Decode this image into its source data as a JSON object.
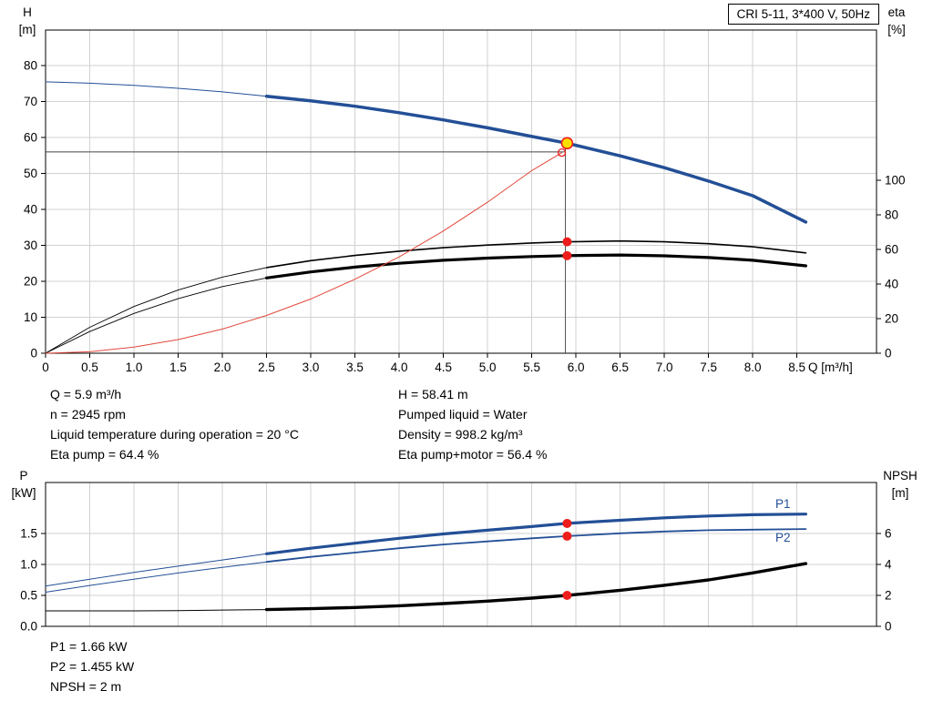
{
  "title_box": "CRI 5-11, 3*400 V, 50Hz",
  "info": {
    "left": [
      "Q = 5.9 m³/h",
      "n = 2945 rpm",
      "Liquid temperature during operation = 20 °C",
      "Eta pump = 64.4 %"
    ],
    "right": [
      "H = 58.41 m",
      "Pumped liquid = Water",
      "Density = 998.2 kg/m³",
      "Eta pump+motor = 56.4 %"
    ],
    "bottom": [
      "P1 = 1.66 kW",
      "P2 = 1.455 kW",
      "NPSH = 2 m"
    ]
  },
  "colors": {
    "curve_blue": "#234f96",
    "curve_black": "#000000",
    "curve_red": "#e0483c",
    "dot_red": "#ee1c1c",
    "duty_yellow": "#ffdf00",
    "grid": "#d2d2d2"
  },
  "chart_data": [
    {
      "type": "line",
      "id": "performance",
      "title": "CRI 5-11, 3*400 V, 50Hz",
      "x_label": "Q [m³/h]",
      "grid": true,
      "grid_color": "#d2d2d2",
      "x_axis": {
        "min": 0,
        "max": 9.4,
        "ticks": [
          0,
          0.5,
          1,
          1.5,
          2,
          2.5,
          3,
          3.5,
          4,
          4.5,
          5,
          5.5,
          6,
          6.5,
          7,
          7.5,
          8,
          8.5
        ],
        "tick_labels": [
          "0",
          "0.5",
          "1.0",
          "1.5",
          "2.0",
          "2.5",
          "3.0",
          "3.5",
          "4.0",
          "4.5",
          "5.0",
          "5.5",
          "6.0",
          "6.5",
          "7.0",
          "7.5",
          "8.0",
          "8.5"
        ]
      },
      "left_axis": {
        "name": "H",
        "unit": "[m]",
        "min": 0,
        "max": 89.9,
        "ticks": [
          0,
          10,
          20,
          30,
          40,
          50,
          60,
          70,
          80
        ],
        "tick_labels": [
          "0",
          "10",
          "20",
          "30",
          "40",
          "50",
          "60",
          "70",
          "80"
        ]
      },
      "right_axis": {
        "name": "eta",
        "unit": "[%]",
        "min": 0,
        "max": 186.8,
        "ticks": [
          0,
          20,
          40,
          60,
          80,
          100
        ],
        "tick_labels": [
          "0",
          "20",
          "40",
          "60",
          "80",
          "100"
        ]
      },
      "series": [
        {
          "id": "head-curve",
          "axis": "left",
          "color": "#234f96",
          "bold_from": 2.5,
          "width_thin": 1,
          "width_bold": 3.5,
          "points": [
            [
              0,
              75.5
            ],
            [
              0.5,
              75.1
            ],
            [
              1,
              74.5
            ],
            [
              1.5,
              73.7
            ],
            [
              2,
              72.7
            ],
            [
              2.5,
              71.5
            ],
            [
              3,
              70.2
            ],
            [
              3.5,
              68.7
            ],
            [
              4,
              66.9
            ],
            [
              4.5,
              64.9
            ],
            [
              5,
              62.7
            ],
            [
              5.5,
              60.3
            ],
            [
              5.9,
              58.41
            ],
            [
              6.5,
              54.9
            ],
            [
              7,
              51.6
            ],
            [
              7.5,
              47.9
            ],
            [
              8,
              43.8
            ],
            [
              8.6,
              36.5
            ]
          ]
        },
        {
          "id": "eta-pump-curve",
          "axis": "right",
          "color": "#000000",
          "bold_from": 2.5,
          "width_thin": 0.9,
          "width_bold": 1.6,
          "points": [
            [
              0,
              0
            ],
            [
              0.5,
              15
            ],
            [
              1,
              27
            ],
            [
              1.5,
              36.5
            ],
            [
              2,
              44
            ],
            [
              2.5,
              49.5
            ],
            [
              3,
              53.5
            ],
            [
              3.5,
              56.5
            ],
            [
              4,
              59
            ],
            [
              4.5,
              61
            ],
            [
              5,
              62.5
            ],
            [
              5.5,
              63.7
            ],
            [
              5.9,
              64.4
            ],
            [
              6.5,
              64.9
            ],
            [
              7,
              64.4
            ],
            [
              7.5,
              63.3
            ],
            [
              8,
              61.5
            ],
            [
              8.6,
              58
            ]
          ]
        },
        {
          "id": "eta-pump-motor-curve",
          "axis": "right",
          "color": "#000000",
          "bold_from": 2.5,
          "width_thin": 0.9,
          "width_bold": 3.2,
          "points": [
            [
              0,
              0
            ],
            [
              0.5,
              12.5
            ],
            [
              1,
              23
            ],
            [
              1.5,
              31.5
            ],
            [
              2,
              38.5
            ],
            [
              2.5,
              43.5
            ],
            [
              3,
              47
            ],
            [
              3.5,
              49.8
            ],
            [
              4,
              52
            ],
            [
              4.5,
              53.7
            ],
            [
              5,
              55
            ],
            [
              5.5,
              55.9
            ],
            [
              5.9,
              56.4
            ],
            [
              6.5,
              56.8
            ],
            [
              7,
              56.3
            ],
            [
              7.5,
              55.3
            ],
            [
              8,
              53.7
            ],
            [
              8.6,
              50.5
            ]
          ]
        },
        {
          "id": "system-curve",
          "axis": "left",
          "color": "#e0483c",
          "width": 1,
          "points": [
            [
              0,
              0
            ],
            [
              0.5,
              0.4
            ],
            [
              1,
              1.7
            ],
            [
              1.5,
              3.8
            ],
            [
              2,
              6.7
            ],
            [
              2.5,
              10.5
            ],
            [
              3,
              15.1
            ],
            [
              3.5,
              20.6
            ],
            [
              4,
              26.8
            ],
            [
              4.5,
              34
            ],
            [
              5,
              42
            ],
            [
              5.5,
              50.8
            ],
            [
              5.84,
              55.8
            ]
          ]
        }
      ],
      "crosshair": {
        "x": 5.88,
        "y_h": 56.0,
        "y_top": 58.41
      },
      "markers": [
        {
          "id": "system-curve-end",
          "type": "open",
          "axis": "left",
          "x": 5.84,
          "y": 55.8,
          "stroke": "#ee1c1c"
        },
        {
          "id": "duty-point",
          "type": "duty",
          "axis": "left",
          "x": 5.9,
          "y": 58.41,
          "fill": "#ffdf00",
          "stroke": "#ee1c1c"
        },
        {
          "id": "eta-pump-point",
          "type": "dot",
          "axis": "right",
          "x": 5.9,
          "y": 64.4,
          "fill": "#ee1c1c"
        },
        {
          "id": "eta-pump-motor-point",
          "type": "dot",
          "axis": "right",
          "x": 5.9,
          "y": 56.4,
          "fill": "#ee1c1c"
        }
      ]
    },
    {
      "type": "line",
      "id": "power-npsh",
      "grid": true,
      "grid_color": "#d2d2d2",
      "x_axis": {
        "min": 0,
        "max": 9.4,
        "ticks": [
          0,
          0.5,
          1,
          1.5,
          2,
          2.5,
          3,
          3.5,
          4,
          4.5,
          5,
          5.5,
          6,
          6.5,
          7,
          7.5,
          8,
          8.5
        ]
      },
      "left_axis": {
        "name": "P",
        "unit": "[kW]",
        "min": 0,
        "max": 2.32,
        "ticks": [
          0,
          0.5,
          1,
          1.5
        ],
        "tick_labels": [
          "0.0",
          "0.5",
          "1.0",
          "1.5"
        ]
      },
      "right_axis": {
        "name": "NPSH",
        "unit": "[m]",
        "min": 0,
        "max": 9.29,
        "ticks": [
          0,
          2,
          4,
          6
        ],
        "tick_labels": [
          "0",
          "2",
          "4",
          "6"
        ]
      },
      "series": [
        {
          "id": "p1-curve",
          "label": "P1",
          "axis": "left",
          "color": "#234f96",
          "bold_from": 2.5,
          "width_thin": 1,
          "width_bold": 3.2,
          "points": [
            [
              0,
              0.65
            ],
            [
              0.5,
              0.76
            ],
            [
              1,
              0.87
            ],
            [
              1.5,
              0.97
            ],
            [
              2,
              1.07
            ],
            [
              2.5,
              1.17
            ],
            [
              3,
              1.26
            ],
            [
              3.5,
              1.34
            ],
            [
              4,
              1.42
            ],
            [
              4.5,
              1.49
            ],
            [
              5,
              1.55
            ],
            [
              5.5,
              1.61
            ],
            [
              5.9,
              1.66
            ],
            [
              6.5,
              1.71
            ],
            [
              7,
              1.75
            ],
            [
              7.5,
              1.78
            ],
            [
              8,
              1.8
            ],
            [
              8.6,
              1.81
            ]
          ]
        },
        {
          "id": "p2-curve",
          "label": "P2",
          "axis": "left",
          "color": "#234f96",
          "bold_from": 2.5,
          "width_thin": 1,
          "width_bold": 1.8,
          "points": [
            [
              0,
              0.55
            ],
            [
              0.5,
              0.66
            ],
            [
              1,
              0.76
            ],
            [
              1.5,
              0.86
            ],
            [
              2,
              0.95
            ],
            [
              2.5,
              1.04
            ],
            [
              3,
              1.12
            ],
            [
              3.5,
              1.19
            ],
            [
              4,
              1.26
            ],
            [
              4.5,
              1.32
            ],
            [
              5,
              1.37
            ],
            [
              5.5,
              1.42
            ],
            [
              5.9,
              1.455
            ],
            [
              6.5,
              1.5
            ],
            [
              7,
              1.53
            ],
            [
              7.5,
              1.55
            ],
            [
              8,
              1.56
            ],
            [
              8.6,
              1.57
            ]
          ]
        },
        {
          "id": "npsh-curve",
          "axis": "right",
          "color": "#000000",
          "bold_from": 2.5,
          "width_thin": 1,
          "width_bold": 3.4,
          "points": [
            [
              0,
              1
            ],
            [
              0.5,
              1
            ],
            [
              1,
              1
            ],
            [
              1.5,
              1.02
            ],
            [
              2,
              1.05
            ],
            [
              2.5,
              1.08
            ],
            [
              3,
              1.14
            ],
            [
              3.5,
              1.22
            ],
            [
              4,
              1.33
            ],
            [
              4.5,
              1.47
            ],
            [
              5,
              1.63
            ],
            [
              5.5,
              1.82
            ],
            [
              5.9,
              2
            ],
            [
              6.5,
              2.33
            ],
            [
              7,
              2.65
            ],
            [
              7.5,
              3
            ],
            [
              8,
              3.45
            ],
            [
              8.6,
              4.05
            ]
          ]
        }
      ],
      "markers": [
        {
          "id": "p1-point",
          "type": "dot",
          "axis": "left",
          "x": 5.9,
          "y": 1.66,
          "fill": "#ee1c1c"
        },
        {
          "id": "p2-point",
          "type": "dot",
          "axis": "left",
          "x": 5.9,
          "y": 1.455,
          "fill": "#ee1c1c"
        },
        {
          "id": "npsh-point",
          "type": "dot",
          "axis": "right",
          "x": 5.9,
          "y": 2,
          "fill": "#ee1c1c"
        }
      ]
    }
  ]
}
